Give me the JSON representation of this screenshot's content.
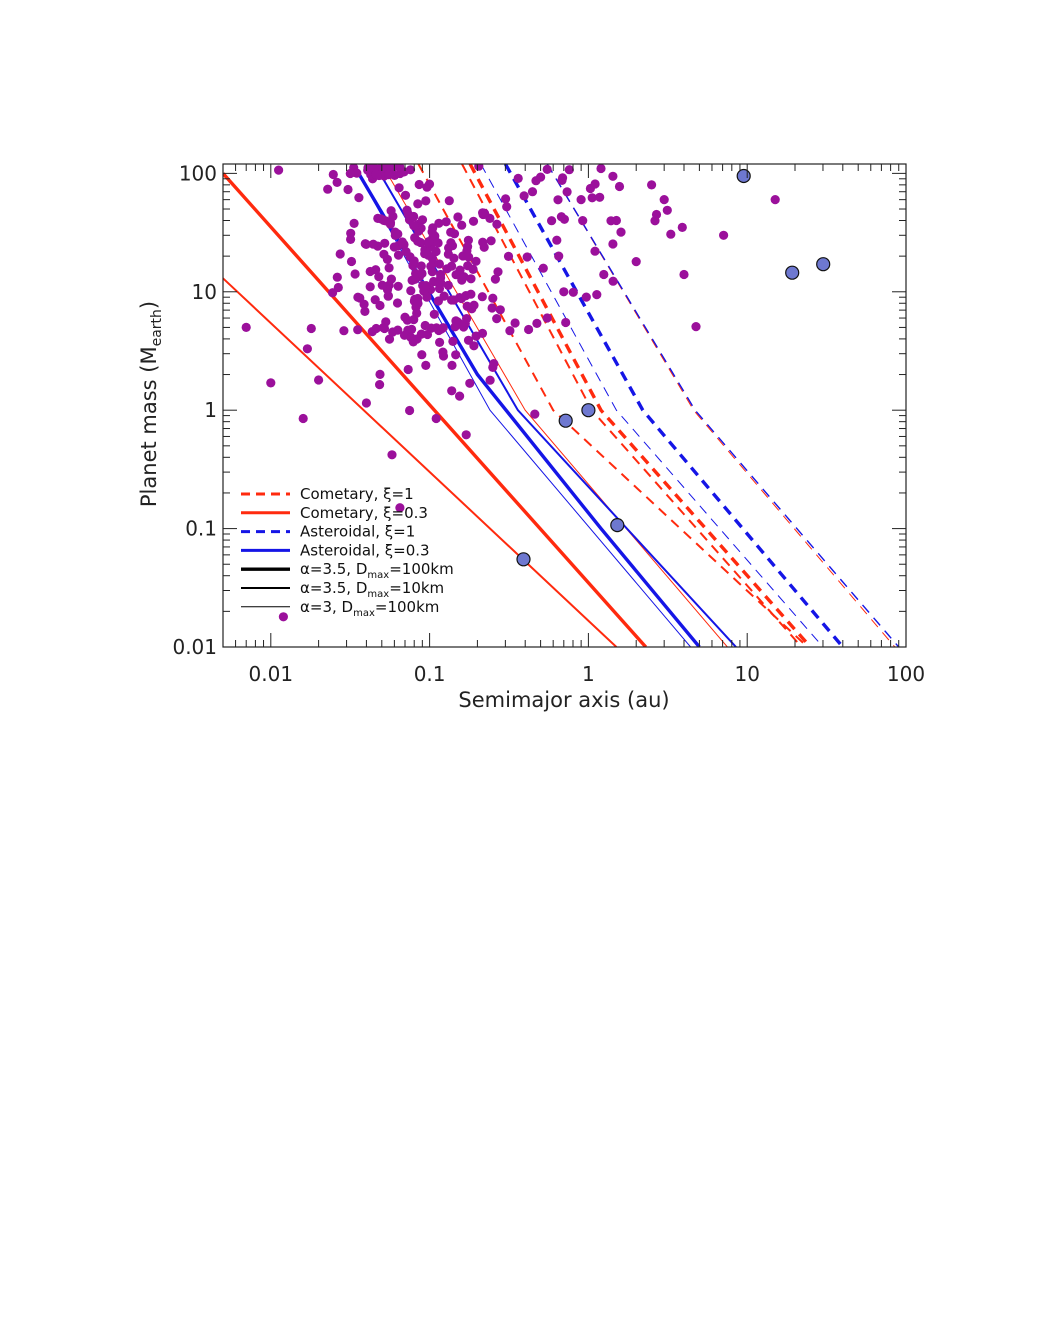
{
  "chart_data": {
    "type": "scatter",
    "xlabel": "Semimajor axis (au)",
    "ylabel": {
      "text": "Planet mass (M",
      "sub": "earth",
      "close": ")"
    },
    "x_scale": "log",
    "y_scale": "log",
    "xlim": [
      0.005,
      100
    ],
    "ylim": [
      0.01,
      120
    ],
    "x_ticks": [
      {
        "v": 0.01,
        "label": "0.01"
      },
      {
        "v": 0.1,
        "label": "0.1"
      },
      {
        "v": 1,
        "label": "1"
      },
      {
        "v": 10,
        "label": "10"
      },
      {
        "v": 100,
        "label": "100"
      }
    ],
    "y_ticks": [
      {
        "v": 0.01,
        "label": "0.01"
      },
      {
        "v": 0.1,
        "label": "0.1"
      },
      {
        "v": 1,
        "label": "1"
      },
      {
        "v": 10,
        "label": "10"
      },
      {
        "v": 100,
        "label": "100"
      }
    ],
    "legend_position": "bottom-left",
    "colors": {
      "cometary": "#ff2a0e",
      "asteroidal": "#1515e6",
      "exoplanet": "#9b109b",
      "solar_system": "#6e78d0"
    },
    "legend": [
      {
        "text": "Cometary, ξ=1",
        "color": "#ff2a0e",
        "dash": true,
        "weight": 3
      },
      {
        "text": "Cometary, ξ=0.3",
        "color": "#ff2a0e",
        "dash": false,
        "weight": 3
      },
      {
        "text": "Asteroidal, ξ=1",
        "color": "#1515e6",
        "dash": true,
        "weight": 3
      },
      {
        "text": "Asteroidal, ξ=0.3",
        "color": "#1515e6",
        "dash": false,
        "weight": 3
      },
      {
        "text": "α=3.5, D",
        "sub": "max",
        "tail": "=100km",
        "color": "#000000",
        "dash": false,
        "weight": 3.4
      },
      {
        "text": "α=3.5, D",
        "sub": "max",
        "tail": "=10km",
        "color": "#000000",
        "dash": false,
        "weight": 2
      },
      {
        "text": "α=3, D",
        "sub": "max",
        "tail": "=100km",
        "color": "#000000",
        "dash": false,
        "weight": 1
      }
    ],
    "series": [
      {
        "name": "Cometary, ξ=1",
        "line_style": "dashed",
        "color": "#ff2a0e",
        "weight": 3.4,
        "points": [
          [
            0.18,
            120
          ],
          [
            1.2,
            1.0
          ],
          [
            25,
            0.01
          ]
        ]
      },
      {
        "name": "Cometary, ξ=1",
        "line_style": "dashed",
        "color": "#ff2a0e",
        "weight": 2,
        "points": [
          [
            0.16,
            120
          ],
          [
            1.05,
            1.0
          ],
          [
            22,
            0.01
          ]
        ]
      },
      {
        "name": "Cometary, ξ=1",
        "line_style": "dashed",
        "color": "#ff2a0e",
        "weight": 1,
        "points": [
          [
            0.55,
            120
          ],
          [
            4.6,
            1.0
          ],
          [
            85,
            0.01
          ]
        ]
      },
      {
        "name": "Cometary, ξ=1",
        "line_style": "dashed",
        "color": "#ff2a0e",
        "weight": 2,
        "points": [
          [
            0.085,
            120
          ],
          [
            0.6,
            1.0
          ],
          [
            24,
            0.01
          ]
        ]
      },
      {
        "name": "Asteroidal, ξ=1",
        "line_style": "dashed",
        "color": "#1515e6",
        "weight": 3.4,
        "points": [
          [
            0.3,
            120
          ],
          [
            2.2,
            1.0
          ],
          [
            40,
            0.01
          ]
        ]
      },
      {
        "name": "Asteroidal, ξ=1",
        "line_style": "dashed",
        "color": "#1515e6",
        "weight": 1,
        "points": [
          [
            0.21,
            120
          ],
          [
            1.5,
            1.0
          ],
          [
            30,
            0.01
          ]
        ]
      },
      {
        "name": "Asteroidal, ξ=1",
        "line_style": "dashed",
        "color": "#1515e6",
        "weight": 1.4,
        "points": [
          [
            0.55,
            120
          ],
          [
            4.7,
            1.0
          ],
          [
            90,
            0.01
          ]
        ]
      },
      {
        "name": "Cometary, ξ=0.3",
        "line_style": "solid",
        "color": "#ff2a0e",
        "weight": 3.4,
        "points": [
          [
            0.005,
            100
          ],
          [
            2.3,
            0.01
          ]
        ]
      },
      {
        "name": "Cometary, ξ=0.3",
        "line_style": "solid",
        "color": "#ff2a0e",
        "weight": 2,
        "points": [
          [
            0.005,
            13
          ],
          [
            1.5,
            0.01
          ]
        ]
      },
      {
        "name": "Cometary, ξ=0.3",
        "line_style": "solid",
        "color": "#ff2a0e",
        "weight": 1,
        "points": [
          [
            0.05,
            120
          ],
          [
            0.4,
            1.0
          ],
          [
            7.5,
            0.01
          ]
        ]
      },
      {
        "name": "Asteroidal, ξ=0.3",
        "line_style": "solid",
        "color": "#1515e6",
        "weight": 3.4,
        "points": [
          [
            0.033,
            120
          ],
          [
            0.2,
            2.0
          ],
          [
            1.2,
            0.1
          ],
          [
            5.0,
            0.01
          ]
        ]
      },
      {
        "name": "Asteroidal, ξ=0.3",
        "line_style": "solid",
        "color": "#1515e6",
        "weight": 2,
        "points": [
          [
            0.045,
            120
          ],
          [
            0.36,
            1.0
          ],
          [
            8.5,
            0.01
          ]
        ]
      },
      {
        "name": "Asteroidal, ξ=0.3",
        "line_style": "solid",
        "color": "#1515e6",
        "weight": 1,
        "points": [
          [
            0.033,
            120
          ],
          [
            0.24,
            1.0
          ],
          [
            4.4,
            0.01
          ]
        ]
      }
    ],
    "solar_system_planets": [
      [
        0.39,
        0.055
      ],
      [
        0.72,
        0.815
      ],
      [
        1.0,
        1.0
      ],
      [
        1.52,
        0.107
      ],
      [
        9.5,
        95
      ],
      [
        19.2,
        14.5
      ],
      [
        30.1,
        17.1
      ]
    ],
    "exoplanet_seed": 12345,
    "exoplanet_fixed": [
      [
        0.007,
        5.0
      ],
      [
        0.01,
        1.7
      ],
      [
        0.012,
        0.018
      ],
      [
        0.016,
        0.85
      ],
      [
        0.017,
        3.3
      ],
      [
        0.018,
        4.9
      ],
      [
        0.02,
        1.8
      ],
      [
        0.04,
        1.15
      ],
      [
        0.058,
        0.42
      ],
      [
        0.065,
        0.15
      ],
      [
        0.11,
        0.85
      ],
      [
        0.17,
        0.62
      ],
      [
        0.25,
        2.3
      ],
      [
        0.19,
        3.5
      ],
      [
        0.7,
        10
      ],
      [
        0.72,
        5.5
      ],
      [
        1.1,
        22
      ],
      [
        1.5,
        40
      ],
      [
        2.0,
        18
      ],
      [
        3.9,
        35
      ],
      [
        4.0,
        14
      ],
      [
        7.1,
        30
      ],
      [
        15.0,
        60
      ],
      [
        0.5,
        93
      ],
      [
        0.55,
        108
      ],
      [
        0.9,
        60
      ],
      [
        1.2,
        110
      ],
      [
        2.5,
        80
      ],
      [
        3.0,
        60
      ],
      [
        0.65,
        20
      ],
      [
        0.55,
        6
      ],
      [
        1.25,
        14
      ]
    ]
  }
}
